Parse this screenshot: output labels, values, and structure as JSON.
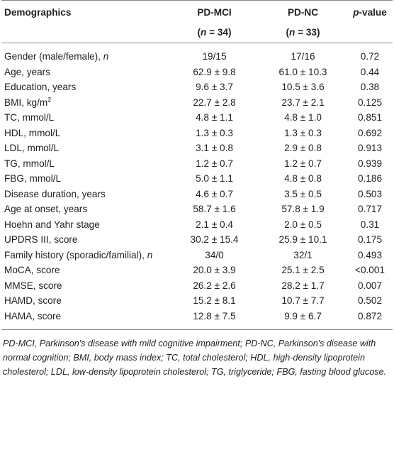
{
  "table": {
    "header": {
      "col0": "Demographics",
      "col1": {
        "line1": "PD-MCI",
        "line2": [
          "(",
          "n",
          " = 34)"
        ]
      },
      "col2": {
        "line1": "PD-NC",
        "line2": [
          "(",
          "n",
          " = 33)"
        ]
      },
      "col3": [
        "p",
        "-value"
      ]
    },
    "rows": [
      [
        [
          "Gender (male/female), ",
          "n"
        ],
        "19/15",
        "17/16",
        "0.72"
      ],
      [
        [
          "Age, years"
        ],
        "62.9 ± 9.8",
        "61.0 ± 10.3",
        "0.44"
      ],
      [
        [
          "Education, years"
        ],
        "9.6 ± 3.7",
        "10.5 ± 3.6",
        "0.38"
      ],
      [
        [
          "BMI, kg/m",
          "2"
        ],
        "22.7 ± 2.8",
        "23.7 ± 2.1",
        "0.125"
      ],
      [
        [
          "TC, mmol/L"
        ],
        "4.8 ± 1.1",
        "4.8 ± 1.0",
        "0.851"
      ],
      [
        [
          "HDL, mmol/L"
        ],
        "1.3 ± 0.3",
        "1.3 ± 0.3",
        "0.692"
      ],
      [
        [
          "LDL, mmol/L"
        ],
        "3.1 ± 0.8",
        "2.9 ± 0.8",
        "0.913"
      ],
      [
        [
          "TG, mmol/L"
        ],
        "1.2 ± 0.7",
        "1.2 ± 0.7",
        "0.939"
      ],
      [
        [
          "FBG, mmol/L"
        ],
        "5.0 ± 1.1",
        "4.8 ± 0.8",
        "0.186"
      ],
      [
        [
          "Disease duration, years"
        ],
        "4.6 ± 0.7",
        "3.5 ± 0.5",
        "0.503"
      ],
      [
        [
          "Age at onset, years"
        ],
        "58.7 ± 1.6",
        "57.8 ± 1.9",
        "0.717"
      ],
      [
        [
          "Hoehn and Yahr stage"
        ],
        "2.1 ± 0.4",
        "2.0 ± 0.5",
        "0.31"
      ],
      [
        [
          "UPDRS III, score"
        ],
        "30.2 ± 15.4",
        "25.9 ± 10.1",
        "0.175"
      ],
      [
        [
          "Family history (sporadic/familial), ",
          "n"
        ],
        "34/0",
        "32/1",
        "0.493"
      ],
      [
        [
          "MoCA, score"
        ],
        "20.0 ± 3.9",
        "25.1 ± 2.5",
        "<0.001"
      ],
      [
        [
          "MMSE, score"
        ],
        "26.2 ± 2.6",
        "28.2 ± 1.7",
        "0.007"
      ],
      [
        [
          "HAMD, score"
        ],
        "15.2 ± 8.1",
        "10.7 ± 7.7",
        "0.502"
      ],
      [
        [
          "HAMA, score"
        ],
        "12.8 ± 7.5",
        "9.9 ± 6.7",
        "0.872"
      ]
    ],
    "footnote": "PD-MCI, Parkinson's disease with mild cognitive impairment; PD-NC, Parkinson's disease with normal cognition; BMI, body mass index; TC, total cholesterol; HDL, high-density lipoprotein cholesterol; LDL, low-density lipoprotein cholesterol; TG, triglyceride; FBG, fasting blood glucose."
  }
}
